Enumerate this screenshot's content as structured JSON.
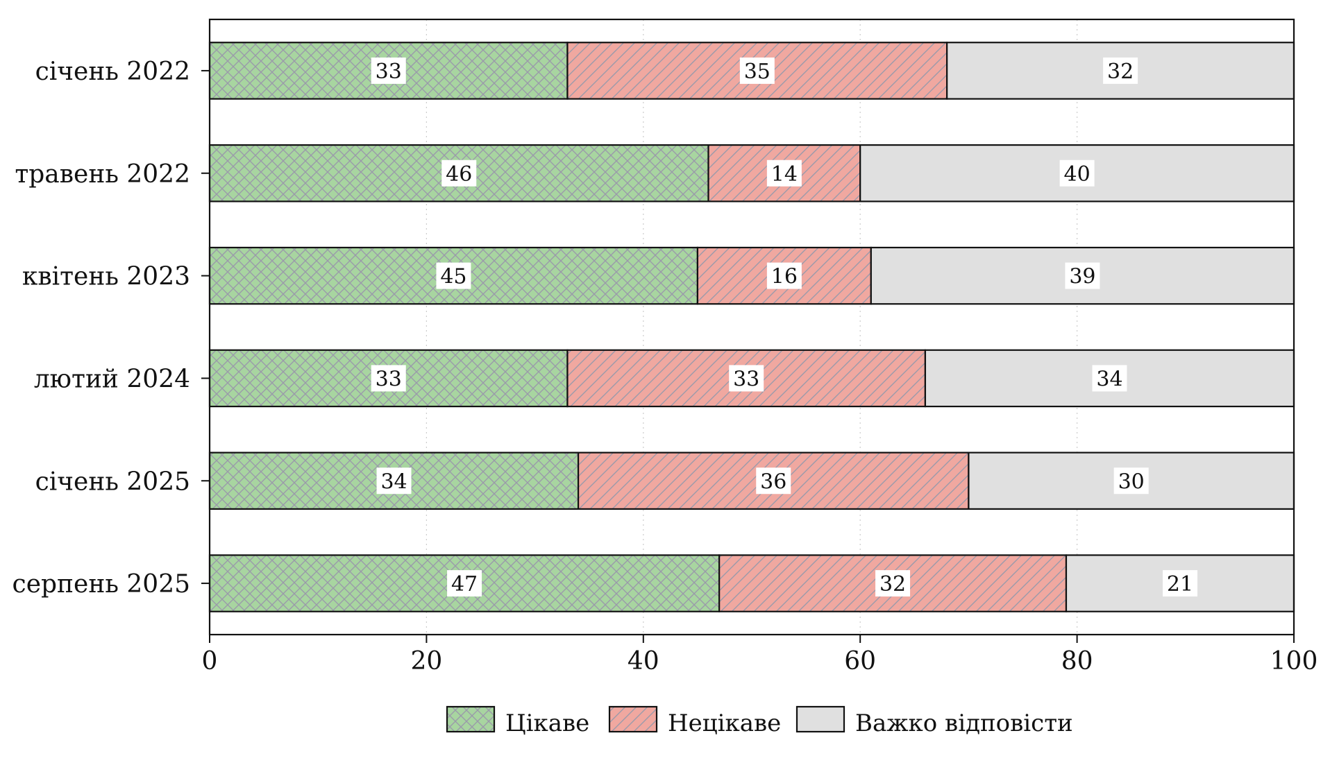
{
  "chart_data": {
    "type": "bar",
    "orientation": "horizontal",
    "stacked": true,
    "categories": [
      "січень 2022",
      "травень 2022",
      "квітень 2023",
      "лютий 2024",
      "січень 2025",
      "серпень 2025"
    ],
    "series": [
      {
        "name": "Цікаве",
        "values": [
          33,
          46,
          45,
          33,
          34,
          47
        ],
        "color": "#a8d5a0",
        "pattern": "crosshatch"
      },
      {
        "name": "Нецікаве",
        "values": [
          35,
          14,
          16,
          33,
          36,
          32
        ],
        "color": "#f0a8a0",
        "pattern": "diagonal"
      },
      {
        "name": "Важко відповісти",
        "values": [
          32,
          40,
          39,
          34,
          30,
          21
        ],
        "color": "#e0e0e0",
        "pattern": "none"
      }
    ],
    "xlim": [
      0,
      100
    ],
    "xticks": [
      0,
      20,
      40,
      60,
      80,
      100
    ],
    "xtick_labels": [
      "0",
      "20",
      "40",
      "60",
      "80",
      "100"
    ],
    "title": "",
    "xlabel": "",
    "ylabel": "",
    "grid": "vertical-dotted",
    "legend_position": "bottom-center"
  }
}
